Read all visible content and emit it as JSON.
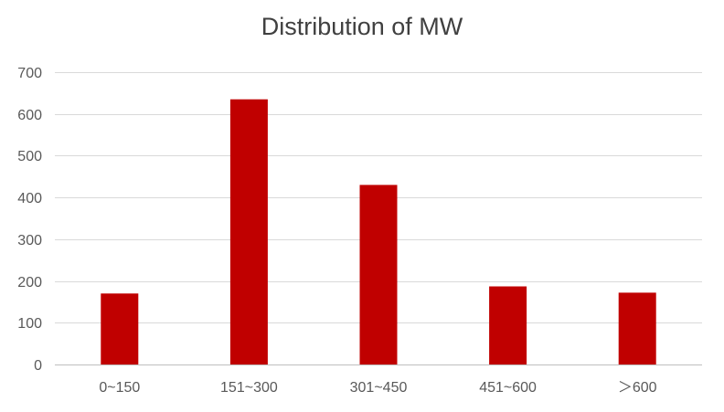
{
  "chart_data": {
    "type": "bar",
    "title": "Distribution of MW",
    "xlabel": "",
    "ylabel": "",
    "categories": [
      "0~150",
      "151~300",
      "301~450",
      "451~600",
      "＞600"
    ],
    "values": [
      170,
      635,
      430,
      187,
      172
    ],
    "ylim": [
      0,
      700
    ],
    "yticks": [
      0,
      100,
      200,
      300,
      400,
      500,
      600,
      700
    ],
    "grid": true,
    "legend": "none",
    "bar_color": "#C00000",
    "grid_color": "#D9D9D9",
    "axis_color": "#BFBFBF"
  }
}
